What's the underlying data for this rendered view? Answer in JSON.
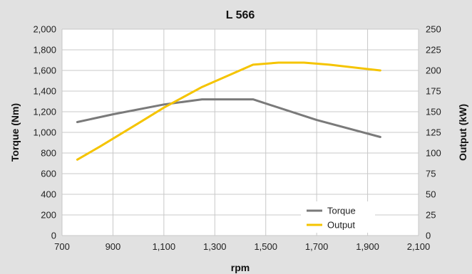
{
  "chart_data": {
    "type": "line",
    "title": "L 566",
    "xlabel": "rpm",
    "ylabel_left": "Torque (Nm)",
    "ylabel_right": "Output (kW)",
    "xlim": [
      700,
      2100
    ],
    "ylim_left": [
      0,
      2000
    ],
    "ylim_right": [
      0,
      250
    ],
    "x_ticks": [
      "700",
      "900",
      "1,100",
      "1,300",
      "1,500",
      "1,700",
      "1,900",
      "2,100"
    ],
    "x_tick_values": [
      700,
      900,
      1100,
      1300,
      1500,
      1700,
      1900,
      2100
    ],
    "y_left_ticks": [
      "0",
      "200",
      "400",
      "600",
      "800",
      "1,000",
      "1,200",
      "1,400",
      "1,600",
      "1,800",
      "2,000"
    ],
    "y_left_tick_values": [
      0,
      200,
      400,
      600,
      800,
      1000,
      1200,
      1400,
      1600,
      1800,
      2000
    ],
    "y_right_ticks": [
      "0",
      "25",
      "50",
      "75",
      "100",
      "125",
      "150",
      "175",
      "200",
      "225",
      "250"
    ],
    "y_right_tick_values": [
      0,
      25,
      50,
      75,
      100,
      125,
      150,
      175,
      200,
      225,
      250
    ],
    "grid": true,
    "legend_position": "bottom-right",
    "series": [
      {
        "name": "Torque",
        "axis": "left",
        "color": "#7a7a7a",
        "x": [
          760,
          900,
          1100,
          1250,
          1450,
          1700,
          1950
        ],
        "y": [
          1100,
          1175,
          1270,
          1320,
          1320,
          1120,
          955
        ]
      },
      {
        "name": "Output",
        "axis": "right",
        "color": "#f5c400",
        "x": [
          760,
          850,
          1000,
          1100,
          1250,
          1450,
          1550,
          1650,
          1750,
          1950
        ],
        "y": [
          92,
          108,
          136,
          155,
          180,
          207,
          209.5,
          209.5,
          207,
          200
        ]
      }
    ]
  }
}
